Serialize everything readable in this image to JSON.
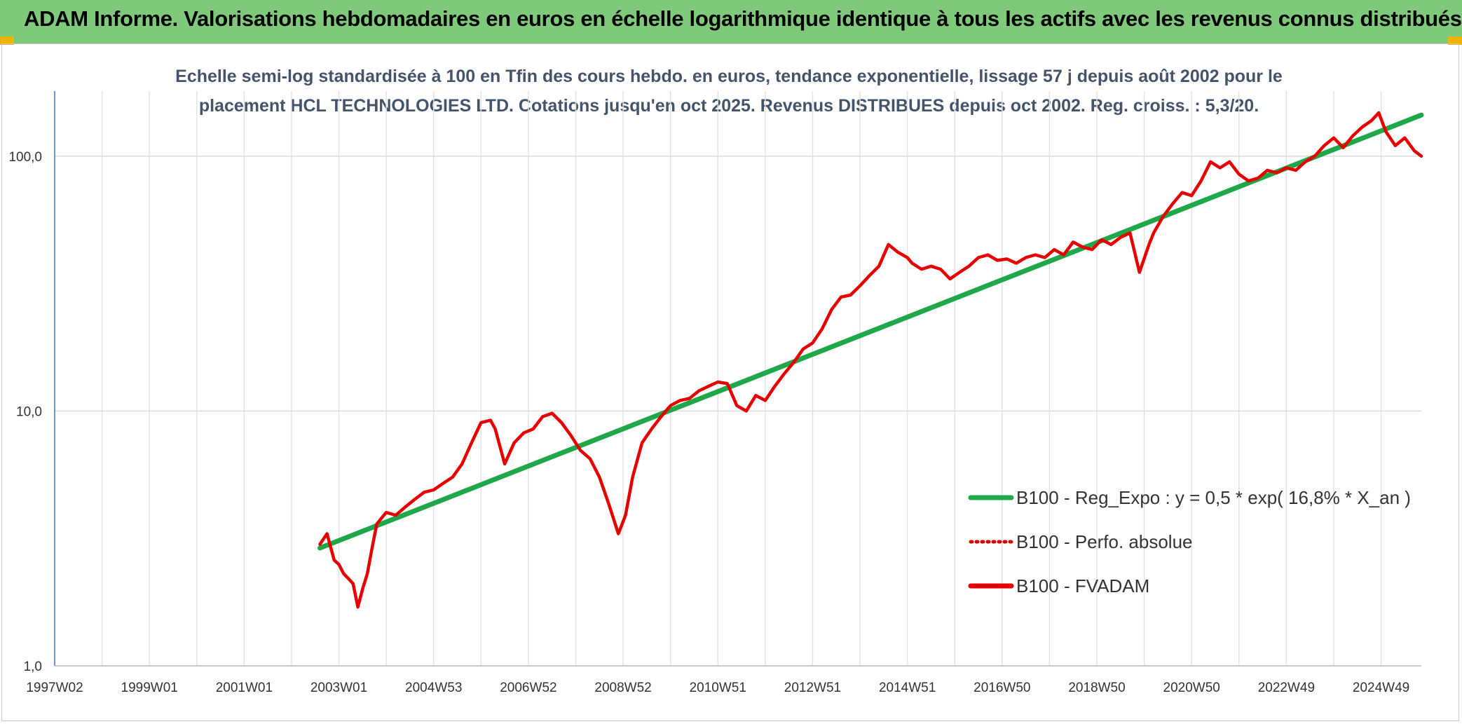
{
  "banner": {
    "title": "ADAM Informe. Valorisations hebdomadaires en euros en échelle logarithmique identique à tous les actifs avec les revenus connus distribués",
    "color": "#7fc97a"
  },
  "chart_data": {
    "type": "line",
    "title_line1": "Echelle semi-log standardisée à 100 en Tfin des cours hebdo. en euros, tendance exponentielle, lissage 57 j depuis août 2002 pour le",
    "title_line2": "placement HCL TECHNOLOGIES LTD. Cotations jusqu'en oct 2025. Revenus DISTRIBUES depuis oct 2002. Reg. croiss. : 5,3/20.",
    "y_scale": "log",
    "ylim": [
      1,
      180
    ],
    "y_ticks": [
      1,
      10,
      100
    ],
    "y_tick_labels": [
      "1,0",
      "10,0",
      "100,0"
    ],
    "xlim": [
      1997.0,
      2025.85
    ],
    "x_ticks": [
      1997.0,
      1999.0,
      2001.0,
      2003.0,
      2005.0,
      2007.0,
      2009.0,
      2011.0,
      2013.0,
      2015.0,
      2017.0,
      2019.0,
      2021.0,
      2023.0,
      2025.0
    ],
    "x_tick_labels": [
      "1997W02",
      "1999W01",
      "2001W01",
      "2003W01",
      "2004W53",
      "2006W52",
      "2008W52",
      "2010W51",
      "2012W51",
      "2014W51",
      "2016W50",
      "2018W50",
      "2020W50",
      "2022W49",
      "2024W49"
    ],
    "grid": true,
    "legend_position": "bottom-right",
    "series": [
      {
        "name": "B100 - Reg_Expo : y = 0,5 * exp( 16,8% *  X_an )",
        "color": "#1fa84a",
        "style": "solid",
        "x": [
          2002.6,
          2025.85
        ],
        "y": [
          2.9,
          145
        ]
      },
      {
        "name": "B100 - Perfo. absolue",
        "color": "#e00000",
        "style": "dotted",
        "x": [],
        "y": []
      },
      {
        "name": "B100 - FVADAM",
        "color": "#e60000",
        "style": "solid",
        "x": [
          2002.6,
          2002.75,
          2002.9,
          2003.0,
          2003.1,
          2003.2,
          2003.3,
          2003.4,
          2003.5,
          2003.6,
          2003.7,
          2003.8,
          2003.9,
          2004.0,
          2004.2,
          2004.4,
          2004.6,
          2004.8,
          2005.0,
          2005.2,
          2005.4,
          2005.6,
          2005.8,
          2006.0,
          2006.2,
          2006.3,
          2006.5,
          2006.7,
          2006.9,
          2007.1,
          2007.3,
          2007.5,
          2007.7,
          2007.9,
          2008.1,
          2008.3,
          2008.5,
          2008.7,
          2008.9,
          2009.05,
          2009.2,
          2009.4,
          2009.6,
          2009.8,
          2010.0,
          2010.2,
          2010.4,
          2010.6,
          2010.8,
          2011.0,
          2011.2,
          2011.4,
          2011.6,
          2011.8,
          2012.0,
          2012.2,
          2012.4,
          2012.6,
          2012.8,
          2013.0,
          2013.2,
          2013.4,
          2013.6,
          2013.8,
          2014.0,
          2014.2,
          2014.4,
          2014.6,
          2014.8,
          2015.0,
          2015.1,
          2015.3,
          2015.5,
          2015.7,
          2015.9,
          2016.1,
          2016.3,
          2016.5,
          2016.7,
          2016.9,
          2017.1,
          2017.3,
          2017.5,
          2017.7,
          2017.9,
          2018.1,
          2018.3,
          2018.5,
          2018.7,
          2018.9,
          2019.1,
          2019.3,
          2019.5,
          2019.7,
          2019.9,
          2020.1,
          2020.2,
          2020.4,
          2020.6,
          2020.8,
          2021.0,
          2021.2,
          2021.4,
          2021.6,
          2021.8,
          2022.0,
          2022.2,
          2022.4,
          2022.6,
          2022.8,
          2023.0,
          2023.2,
          2023.4,
          2023.6,
          2023.8,
          2024.0,
          2024.2,
          2024.4,
          2024.6,
          2024.8,
          2024.95,
          2025.1,
          2025.3,
          2025.5,
          2025.7,
          2025.85
        ],
        "y": [
          3.0,
          3.3,
          2.6,
          2.5,
          2.3,
          2.2,
          2.1,
          1.7,
          2.0,
          2.3,
          2.9,
          3.6,
          3.8,
          4.0,
          3.9,
          4.2,
          4.5,
          4.8,
          4.9,
          5.2,
          5.5,
          6.2,
          7.5,
          9.0,
          9.2,
          8.5,
          6.2,
          7.5,
          8.2,
          8.5,
          9.5,
          9.8,
          9.0,
          8.0,
          7.0,
          6.5,
          5.5,
          4.3,
          3.3,
          3.9,
          5.5,
          7.5,
          8.5,
          9.5,
          10.5,
          11.0,
          11.2,
          12.0,
          12.5,
          13.0,
          12.8,
          10.5,
          10.0,
          11.5,
          11.0,
          12.5,
          14.0,
          15.5,
          17.5,
          18.5,
          21.0,
          25.0,
          28.0,
          28.5,
          31.0,
          34.0,
          37.0,
          45.0,
          42.0,
          40.0,
          38.0,
          36.0,
          37.0,
          36.0,
          33.0,
          35.0,
          37.0,
          40.0,
          41.0,
          39.0,
          39.5,
          38.0,
          40.0,
          41.0,
          40.0,
          43.0,
          41.0,
          46.0,
          44.0,
          43.0,
          47.0,
          45.0,
          48.0,
          50.0,
          35.0,
          45.0,
          50.0,
          58.0,
          65.0,
          72.0,
          70.0,
          80.0,
          95.0,
          90.0,
          95.0,
          85.0,
          80.0,
          82.0,
          88.0,
          86.0,
          90.0,
          88.0,
          95.0,
          100.0,
          110.0,
          118.0,
          108.0,
          120.0,
          130.0,
          138.0,
          148.0,
          125.0,
          110.0,
          118.0,
          105.0,
          100.0
        ]
      }
    ]
  }
}
